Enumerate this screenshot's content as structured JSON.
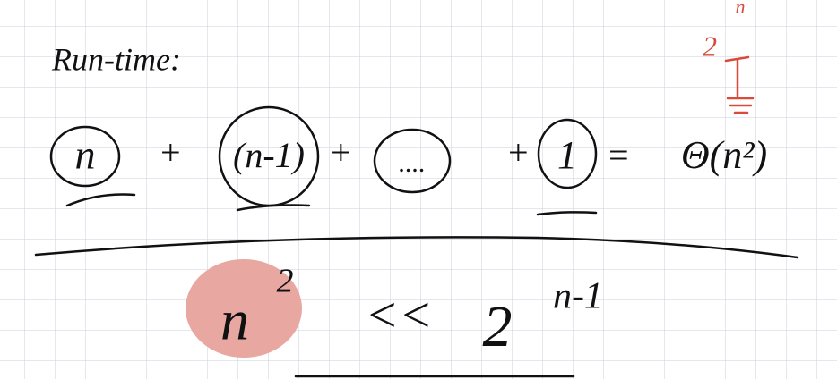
{
  "heading": "Run-time:",
  "equation": {
    "terms": [
      "n",
      "(n-1)",
      "....",
      "1"
    ],
    "operators": [
      "+",
      "+",
      "+",
      "="
    ],
    "result": "Θ(n²)"
  },
  "comparison": {
    "left_base": "n",
    "left_exponent": "2",
    "operator": "<<",
    "right_base": "2",
    "right_exponent": "n-1"
  },
  "annotation": {
    "base": "2",
    "exponent": "n"
  }
}
